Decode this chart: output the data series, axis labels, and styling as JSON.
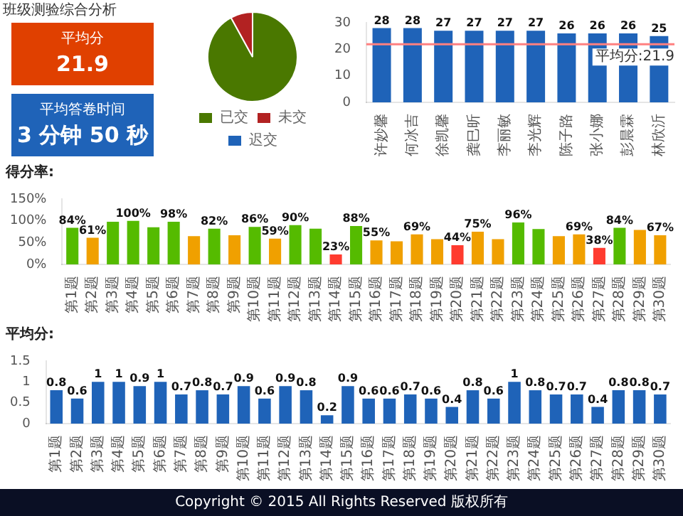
{
  "chart_data": [
    {
      "type": "other",
      "title": "班级测验综合分析",
      "annotations": [
        "平均分",
        "21.9",
        "平均答卷时间",
        "3 分钟 50 秒"
      ]
    },
    {
      "type": "pie",
      "categories": [
        "已交",
        "未交",
        "迟交"
      ],
      "values": [
        92,
        8,
        0
      ],
      "colors": [
        "#4a7800",
        "#b22222",
        "#1f63b8"
      ],
      "legend": "bottom"
    },
    {
      "type": "bar",
      "categories": [
        "许妙馨",
        "何冰吉",
        "徐凯馨",
        "龚巳昕",
        "李丽敏",
        "李光辉",
        "陈子路",
        "张小娜",
        "彭晨霖",
        "林欣沂"
      ],
      "values": [
        28,
        28,
        27,
        27,
        27,
        27,
        26,
        26,
        26,
        25
      ],
      "color": "#1f63b8",
      "ylim": [
        0,
        30
      ],
      "yticks": [
        0,
        10,
        20,
        30
      ],
      "data_labels": true,
      "ref_lines": [
        {
          "axis": "y",
          "value": 21.9,
          "label": "平均分:21.9",
          "color": "#ff8080"
        }
      ]
    },
    {
      "type": "bar",
      "title": "得分率:",
      "categories": [
        "第1题",
        "第2题",
        "第3题",
        "第4题",
        "第5题",
        "第6题",
        "第7题",
        "第8题",
        "第9题",
        "第10题",
        "第11题",
        "第12题",
        "第13题",
        "第14题",
        "第15题",
        "第16题",
        "第17题",
        "第18题",
        "第19题",
        "第20题",
        "第21题",
        "第22题",
        "第23题",
        "第24题",
        "第25题",
        "第26题",
        "第27题",
        "第28题",
        "第29题",
        "第30题"
      ],
      "values": [
        84,
        61,
        98,
        100,
        85,
        98,
        65,
        82,
        67,
        86,
        59,
        90,
        82,
        23,
        88,
        55,
        53,
        69,
        58,
        44,
        75,
        58,
        96,
        81,
        65,
        69,
        38,
        84,
        79,
        67
      ],
      "value_labels": [
        "84%",
        "61%",
        null,
        "100%",
        null,
        "98%",
        null,
        "82%",
        null,
        "86%",
        "59%",
        "90%",
        null,
        "23%",
        "88%",
        "55%",
        null,
        "69%",
        null,
        "44%",
        "75%",
        null,
        "96%",
        null,
        null,
        "69%",
        "38%",
        "84%",
        null,
        "67%"
      ],
      "colors": [
        "#55bb00",
        "#f0a000",
        "#55bb00",
        "#55bb00",
        "#55bb00",
        "#55bb00",
        "#f0a000",
        "#55bb00",
        "#f0a000",
        "#55bb00",
        "#f0a000",
        "#55bb00",
        "#55bb00",
        "#ff3b2f",
        "#55bb00",
        "#f0a000",
        "#f0a000",
        "#f0a000",
        "#f0a000",
        "#ff3b2f",
        "#f0a000",
        "#f0a000",
        "#55bb00",
        "#55bb00",
        "#f0a000",
        "#f0a000",
        "#ff3b2f",
        "#55bb00",
        "#f0a000",
        "#f0a000"
      ],
      "ylim": [
        0,
        150
      ],
      "yticks": [
        {
          "value": 0,
          "label": "0%"
        },
        {
          "value": 50,
          "label": "50%"
        },
        {
          "value": 100,
          "label": "100%"
        },
        {
          "value": 150,
          "label": "150%"
        }
      ]
    },
    {
      "type": "bar",
      "title": "平均分:",
      "categories": [
        "第1题",
        "第2题",
        "第3题",
        "第4题",
        "第5题",
        "第6题",
        "第7题",
        "第8题",
        "第9题",
        "第10题",
        "第11题",
        "第12题",
        "第13题",
        "第14题",
        "第15题",
        "第16题",
        "第17题",
        "第18题",
        "第19题",
        "第20题",
        "第21题",
        "第22题",
        "第23题",
        "第24题",
        "第25题",
        "第26题",
        "第27题",
        "第28题",
        "第29题",
        "第30题"
      ],
      "values": [
        0.8,
        0.6,
        1,
        1,
        0.9,
        1,
        0.7,
        0.8,
        0.7,
        0.9,
        0.6,
        0.9,
        0.8,
        0.2,
        0.9,
        0.6,
        0.6,
        0.7,
        0.6,
        0.4,
        0.8,
        0.6,
        1,
        0.8,
        0.7,
        0.7,
        0.4,
        0.8,
        0.8,
        0.7
      ],
      "color": "#1f63b8",
      "ylim": [
        0,
        1.5
      ],
      "yticks": [
        0,
        0.5,
        1,
        1.5
      ],
      "data_labels": true,
      "annotations": [
        "Copyright © 2015 All Rights Reserved 版权所有"
      ]
    }
  ]
}
